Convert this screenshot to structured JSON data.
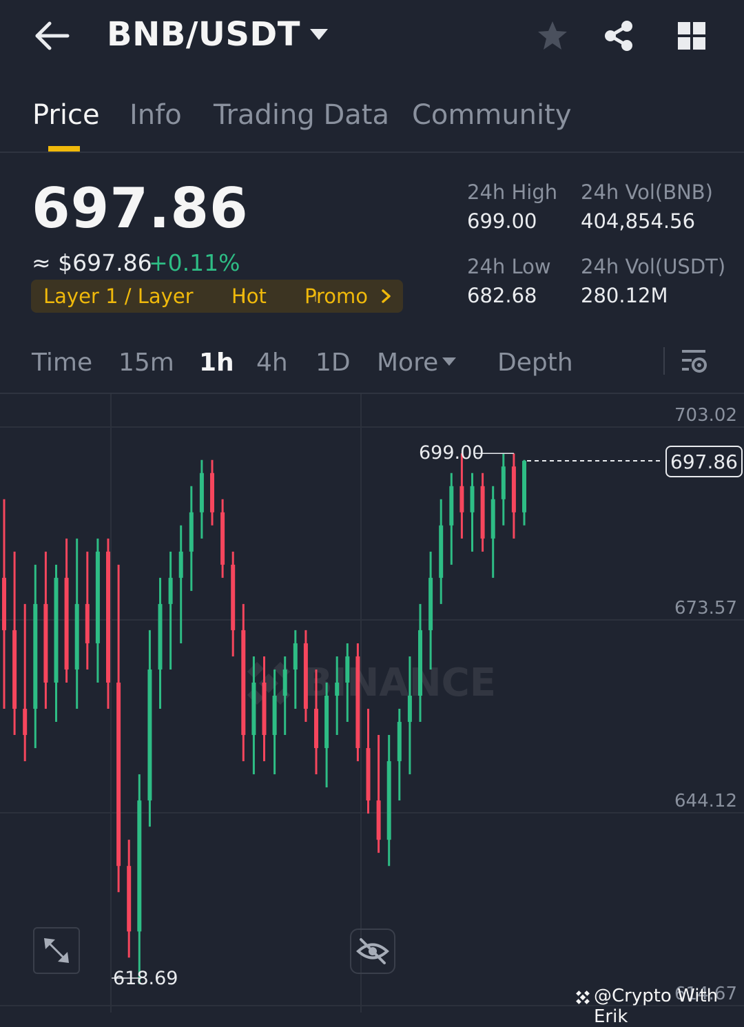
{
  "header": {
    "title": "BNB/USDT"
  },
  "icons": {
    "back": "arrow-left-icon",
    "caret": "caret-down-icon",
    "star": "star-icon",
    "share": "share-icon",
    "grid": "grid-icon"
  },
  "tabs": [
    {
      "label": "Price"
    },
    {
      "label": "Info"
    },
    {
      "label": "Trading Data"
    },
    {
      "label": "Community"
    }
  ],
  "ticker": {
    "price": "697.86",
    "usd_price": "≈ $697.86",
    "change": "+0.11%",
    "tags": [
      "Layer 1 / Layer",
      "Hot",
      "Promo"
    ]
  },
  "stats": {
    "high_label": "24h High",
    "high_value": "699.00",
    "low_label": "24h Low",
    "low_value": "682.68",
    "vol_base_label": "24h Vol(BNB)",
    "vol_base_value": "404,854.56",
    "vol_quote_label": "24h Vol(USDT)",
    "vol_quote_value": "280.12M"
  },
  "intervals": {
    "items": [
      "Time",
      "15m",
      "1h",
      "4h",
      "1D"
    ],
    "more": "More",
    "depth": "Depth",
    "active": "1h"
  },
  "chart_data": {
    "type": "candlestick",
    "pair": "BNB/USDT",
    "interval": "1h",
    "y_ticks": [
      "703.02",
      "673.57",
      "644.12",
      "614.67"
    ],
    "ylim": [
      614.67,
      703.02
    ],
    "last_price": "697.86",
    "high_marker": "699.00",
    "low_marker": "618.69",
    "watermark": "BINANCE",
    "colors": {
      "up": "#2ebd85",
      "down": "#f6465d"
    },
    "candles": [
      [
        680,
        692,
        660,
        672
      ],
      [
        672,
        684,
        656,
        660
      ],
      [
        660,
        676,
        652,
        656
      ],
      [
        660,
        682,
        654,
        676
      ],
      [
        676,
        684,
        660,
        664
      ],
      [
        664,
        682,
        658,
        680
      ],
      [
        680,
        686,
        664,
        666
      ],
      [
        666,
        686,
        660,
        676
      ],
      [
        676,
        684,
        666,
        670
      ],
      [
        670,
        686,
        664,
        684
      ],
      [
        684,
        686,
        660,
        664
      ],
      [
        664,
        682,
        632,
        636
      ],
      [
        636,
        640,
        622,
        626
      ],
      [
        626,
        650,
        618,
        646
      ],
      [
        646,
        672,
        642,
        666
      ],
      [
        666,
        680,
        660,
        676
      ],
      [
        676,
        684,
        666,
        680
      ],
      [
        680,
        688,
        670,
        684
      ],
      [
        684,
        694,
        678,
        690
      ],
      [
        690,
        698,
        686,
        696
      ],
      [
        696,
        698,
        688,
        690
      ],
      [
        690,
        692,
        680,
        682
      ],
      [
        682,
        684,
        668,
        672
      ],
      [
        672,
        676,
        652,
        656
      ],
      [
        656,
        668,
        650,
        664
      ],
      [
        664,
        668,
        652,
        656
      ],
      [
        656,
        666,
        650,
        662
      ],
      [
        662,
        668,
        656,
        666
      ],
      [
        666,
        672,
        660,
        670
      ],
      [
        670,
        672,
        658,
        660
      ],
      [
        660,
        666,
        650,
        654
      ],
      [
        654,
        664,
        648,
        662
      ],
      [
        662,
        668,
        656,
        664
      ],
      [
        664,
        670,
        658,
        668
      ],
      [
        668,
        670,
        652,
        654
      ],
      [
        654,
        660,
        644,
        646
      ],
      [
        646,
        656,
        638,
        640
      ],
      [
        640,
        656,
        636,
        652
      ],
      [
        652,
        660,
        646,
        658
      ],
      [
        658,
        668,
        650,
        662
      ],
      [
        662,
        676,
        658,
        672
      ],
      [
        672,
        684,
        666,
        680
      ],
      [
        680,
        692,
        676,
        688
      ],
      [
        688,
        696,
        682,
        694
      ],
      [
        694,
        699,
        686,
        690
      ],
      [
        690,
        696,
        684,
        694
      ],
      [
        694,
        696,
        684,
        686
      ],
      [
        686,
        694,
        680,
        692
      ],
      [
        692,
        699,
        688,
        697
      ],
      [
        697,
        699,
        686,
        690
      ],
      [
        690,
        698,
        688,
        697.86
      ]
    ]
  },
  "controls": {
    "expand_icon": "expand-icon",
    "hide_icon": "eye-off-icon"
  },
  "attribution": "@Crypto With Erik"
}
